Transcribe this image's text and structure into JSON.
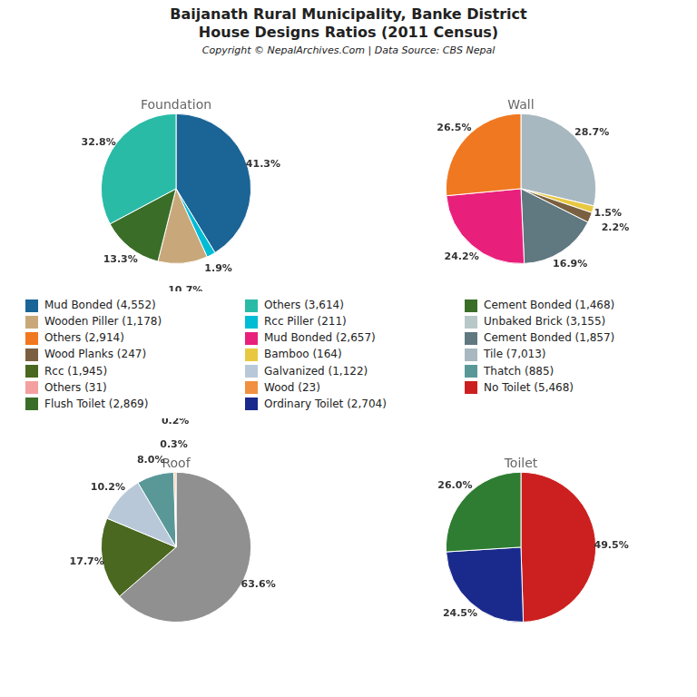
{
  "title": [
    "Baijanath Rural Municipality, Banke District",
    "House Designs Ratios (2011 Census)"
  ],
  "subtitle": "Copyright © NepalArchives.Com | Data Source: CBS Nepal",
  "chart_data": [
    {
      "type": "pie",
      "title": "Foundation",
      "values": [
        41.3,
        1.9,
        10.7,
        13.3,
        32.8
      ],
      "value_labels": [
        "41.3%",
        "1.9%",
        "10.7%",
        "13.3%",
        "32.8%"
      ],
      "colors": [
        "#1a6496",
        "#00bcd4",
        "#c8a87a",
        "#3a6e28",
        "#2abba7"
      ],
      "data_labels": true
    },
    {
      "type": "pie",
      "title": "Wall",
      "values": [
        28.7,
        1.5,
        2.2,
        16.9,
        24.2,
        26.5
      ],
      "value_labels": [
        "28.7%",
        "1.5%",
        "2.2%",
        "16.9%",
        "24.2%",
        "26.5%"
      ],
      "colors": [
        "#a8b8c0",
        "#e8c840",
        "#7a6040",
        "#607880",
        "#e8207c",
        "#f07820"
      ],
      "data_labels": true
    },
    {
      "type": "pie",
      "title": "Roof",
      "values": [
        63.6,
        17.7,
        10.2,
        8.0,
        0.3,
        0.2
      ],
      "value_labels": [
        "63.6%",
        "17.7%",
        "10.2%",
        "8.0%",
        "0.3%",
        "0.2%"
      ],
      "colors": [
        "#909090",
        "#4a6820",
        "#b8c8d8",
        "#5a9898",
        "#e06010",
        "#f09040"
      ],
      "data_labels": true
    },
    {
      "type": "pie",
      "title": "Toilet",
      "values": [
        49.5,
        24.5,
        26.0
      ],
      "value_labels": [
        "49.5%",
        "24.5%",
        "26.0%"
      ],
      "colors": [
        "#cc2020",
        "#1a2a8c",
        "#2e7d32"
      ],
      "data_labels": true
    }
  ],
  "series": [
    {
      "name": "Mud Bonded (4,552)",
      "color": "#1a6496"
    },
    {
      "name": "Others (3,614)",
      "color": "#2abba7"
    },
    {
      "name": "Cement Bonded (1,468)",
      "color": "#3a6e28"
    },
    {
      "name": "Wooden Piller (1,178)",
      "color": "#c8a87a"
    },
    {
      "name": "Rcc Piller (211)",
      "color": "#00bcd4"
    },
    {
      "name": "Unbaked Brick (3,155)",
      "color": "#b8c8c8"
    },
    {
      "name": "Others (2,914)",
      "color": "#f07820"
    },
    {
      "name": "Mud Bonded (2,657)",
      "color": "#e8207c"
    },
    {
      "name": "Cement Bonded (1,857)",
      "color": "#607880"
    },
    {
      "name": "Wood Planks (247)",
      "color": "#7a6040"
    },
    {
      "name": "Bamboo (164)",
      "color": "#e8c840"
    },
    {
      "name": "Tile (7,013)",
      "color": "#a8b8c0"
    },
    {
      "name": "Rcc (1,945)",
      "color": "#4a6820"
    },
    {
      "name": "Galvanized (1,122)",
      "color": "#b8c8d8"
    },
    {
      "name": "Thatch (885)",
      "color": "#5a9898"
    },
    {
      "name": "Others (31)",
      "color": "#f4a0a0"
    },
    {
      "name": "Wood (23)",
      "color": "#f09040"
    },
    {
      "name": "No Toilet (5,468)",
      "color": "#cc2020"
    },
    {
      "name": "Flush Toilet (2,869)",
      "color": "#3a6e28"
    },
    {
      "name": "Ordinary Toilet (2,704)",
      "color": "#1a2a8c"
    }
  ]
}
